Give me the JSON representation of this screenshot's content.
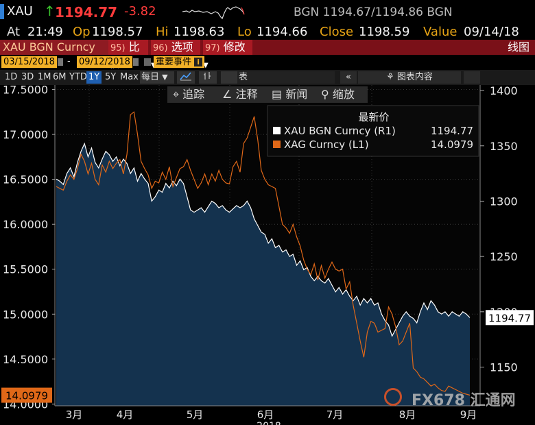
{
  "header": {
    "ticker": "XAU",
    "last_price": "1194.77",
    "change": "-3.82",
    "bid_ask": "BGN 1194.67/1194.86 BGN"
  },
  "quote": {
    "at_label": "At",
    "at_value": "21:49",
    "op_label": "Op",
    "op_value": "1198.57",
    "hi_label": "Hi",
    "hi_value": "1198.63",
    "lo_label": "Lo",
    "lo_value": "1194.66",
    "close_label": "Close",
    "close_value": "1198.59",
    "value_label": "Value",
    "value_value": "09/14/18"
  },
  "toolbar": {
    "security": "XAU BGN Curncy",
    "compare_num": "95)",
    "compare_label": "比较",
    "options_num": "96)",
    "options_label": "选项",
    "edit_num": "97)",
    "edit_label": "修改",
    "chart_type": "线图"
  },
  "dates": {
    "start": "03/15/2018",
    "dash": "-",
    "end": "09/12/2018",
    "events": "重要事件"
  },
  "periods": [
    "1D",
    "3D",
    "1M",
    "6M",
    "YTD",
    "1Y",
    "5Y",
    "Max"
  ],
  "period_selected": "1Y",
  "period_extra": {
    "daily": "每日",
    "table": "表",
    "collapse": "«",
    "chart_content": "图表内容"
  },
  "tools": {
    "track": "追踪",
    "annotate": "注释",
    "news": "新闻",
    "zoom": "缩放"
  },
  "watermark": "FX678 汇通网",
  "chart_data": {
    "type": "line",
    "x_ticks": [
      "3月",
      "4月",
      "5月",
      "6月",
      "7月",
      "8月",
      "9月"
    ],
    "year_label": "2018",
    "left_axis": {
      "ticks": [
        "17.5000",
        "17.0000",
        "16.5000",
        "16.0000",
        "15.5000",
        "15.0000",
        "14.5000",
        "14.0000"
      ],
      "ylim": [
        13.98,
        17.55
      ]
    },
    "right_axis": {
      "ticks": [
        "1400",
        "1350",
        "1300",
        "1250",
        "1200",
        "1150"
      ],
      "ylim": [
        1115,
        1405
      ]
    },
    "legend": {
      "title": "最新价",
      "entries": [
        {
          "name": "XAU BGN Curncy  (R1)",
          "value": "1194.77",
          "color": "#ffffff"
        },
        {
          "name": "XAG Curncy  (L1)",
          "value": "14.0979",
          "color": "#e06818"
        }
      ]
    },
    "last_labels": {
      "xau": "1194.77",
      "xag": "14.0979"
    },
    "series": [
      {
        "name": "XAU BGN Curncy",
        "axis": "right",
        "color": "#ffffff",
        "values": [
          1320,
          1318,
          1315,
          1325,
          1330,
          1322,
          1335,
          1345,
          1352,
          1340,
          1348,
          1335,
          1330,
          1338,
          1345,
          1342,
          1336,
          1340,
          1332,
          1338,
          1334,
          1325,
          1330,
          1318,
          1325,
          1320,
          1316,
          1300,
          1304,
          1310,
          1308,
          1316,
          1312,
          1318,
          1314,
          1320,
          1316,
          1304,
          1292,
          1290,
          1292,
          1294,
          1290,
          1295,
          1300,
          1298,
          1294,
          1296,
          1292,
          1290,
          1293,
          1296,
          1294,
          1296,
          1300,
          1294,
          1284,
          1278,
          1272,
          1270,
          1262,
          1266,
          1258,
          1260,
          1254,
          1256,
          1250,
          1252,
          1242,
          1246,
          1238,
          1240,
          1232,
          1228,
          1232,
          1228,
          1226,
          1230,
          1224,
          1218,
          1222,
          1216,
          1220,
          1214,
          1210,
          1214,
          1206,
          1212,
          1208,
          1212,
          1206,
          1208,
          1198,
          1192,
          1188,
          1178,
          1184,
          1190,
          1196,
          1200,
          1196,
          1194,
          1190,
          1200,
          1208,
          1202,
          1210,
          1206,
          1200,
          1198,
          1200,
          1196,
          1200,
          1198,
          1196,
          1200,
          1198,
          1194.77
        ],
        "comment": "daily closes Mar 15 - Sep 12 2018 (approx)"
      },
      {
        "name": "XAG Curncy",
        "axis": "left",
        "color": "#e06818",
        "values": [
          16.42,
          16.4,
          16.38,
          16.48,
          16.55,
          16.5,
          16.62,
          16.78,
          16.7,
          16.56,
          16.68,
          16.5,
          16.44,
          16.66,
          16.58,
          16.7,
          16.62,
          16.68,
          16.72,
          16.56,
          16.78,
          17.22,
          17.25,
          17.0,
          16.7,
          16.62,
          16.55,
          16.4,
          16.48,
          16.46,
          16.58,
          16.5,
          16.64,
          16.42,
          16.52,
          16.62,
          16.64,
          16.72,
          16.6,
          16.5,
          16.4,
          16.46,
          16.56,
          16.44,
          16.56,
          16.48,
          16.6,
          16.5,
          16.46,
          16.45,
          16.64,
          16.7,
          16.58,
          16.9,
          16.96,
          17.08,
          17.2,
          16.94,
          16.6,
          16.5,
          16.44,
          16.42,
          16.4,
          16.2,
          16.0,
          15.96,
          15.9,
          16.0,
          15.86,
          15.76,
          15.6,
          15.5,
          15.44,
          15.56,
          15.38,
          15.54,
          15.4,
          15.5,
          15.58,
          15.5,
          15.48,
          15.5,
          15.28,
          15.36,
          15.1,
          14.9,
          14.7,
          14.52,
          14.8,
          14.92,
          14.9,
          14.8,
          14.82,
          14.84,
          15.08,
          15.0,
          14.86,
          14.66,
          14.7,
          14.8,
          14.9,
          14.4,
          14.36,
          14.3,
          14.28,
          14.24,
          14.2,
          14.22,
          14.18,
          14.15,
          14.14,
          14.2,
          14.18,
          14.16,
          14.14,
          14.12,
          14.11,
          14.0979
        ]
      }
    ]
  }
}
